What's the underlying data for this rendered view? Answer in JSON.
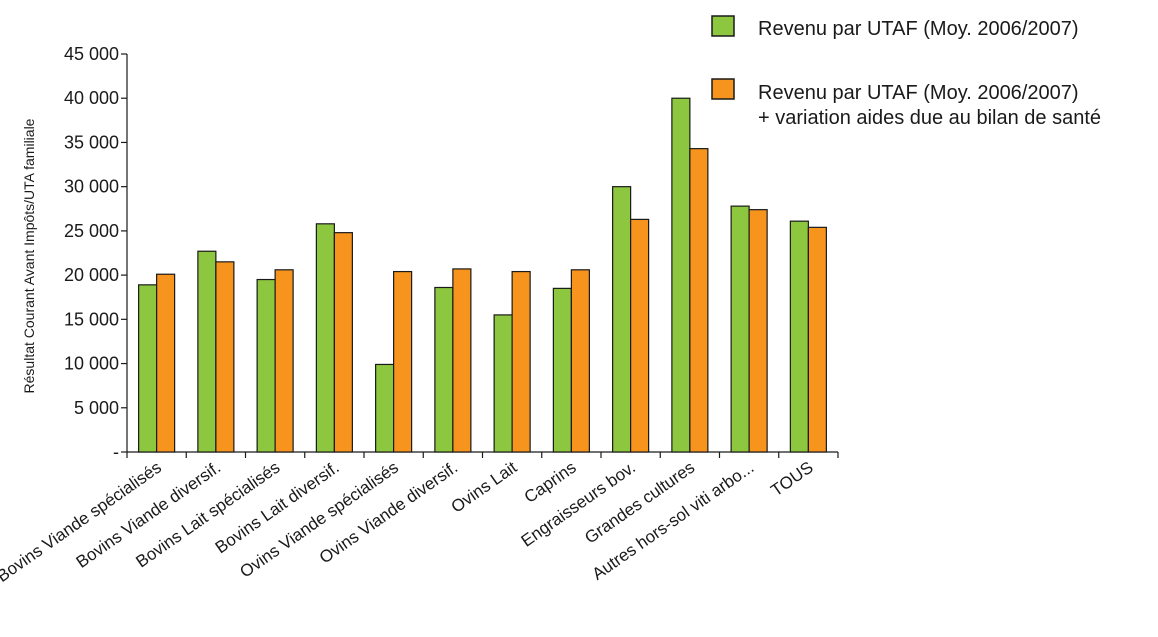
{
  "chart_data": {
    "type": "bar",
    "title": "",
    "xlabel": "",
    "ylabel": "Résultat Courant Avant Impôts/UTA familiale",
    "ylim": [
      0,
      45000
    ],
    "ytick_values": [
      0,
      5000,
      10000,
      15000,
      20000,
      25000,
      30000,
      35000,
      40000,
      45000
    ],
    "ytick_labels": [
      "-",
      "5 000",
      "10 000",
      "15 000",
      "20 000",
      "25 000",
      "30 000",
      "35 000",
      "40 000",
      "45 000"
    ],
    "grid": false,
    "legend_position": "top-right",
    "categories": [
      "Bovins Viande spécialisés",
      "Bovins Viande diversif.",
      "Bovins Lait spécialisés",
      "Bovins Lait diversif.",
      "Ovins Viande spécialisés",
      "Ovins Viande diversif.",
      "Ovins Lait",
      "Caprins",
      "Engraisseurs bov.",
      "Grandes cultures",
      "Autres hors-sol viti arbo...",
      "TOUS"
    ],
    "series": [
      {
        "name": "Revenu par UTAF (Moy. 2006/2007)",
        "color": "#8dc63f",
        "values": [
          18900,
          22700,
          19500,
          25800,
          9900,
          18600,
          15500,
          18500,
          30000,
          40000,
          27800,
          26100
        ]
      },
      {
        "name": "Revenu par UTAF (Moy. 2006/2007)",
        "name_line2": "+ variation aides due au bilan de santé",
        "color": "#f7941d",
        "values": [
          20100,
          21500,
          20600,
          24800,
          20400,
          20700,
          20400,
          20600,
          26300,
          34300,
          27400,
          25400
        ]
      }
    ]
  }
}
